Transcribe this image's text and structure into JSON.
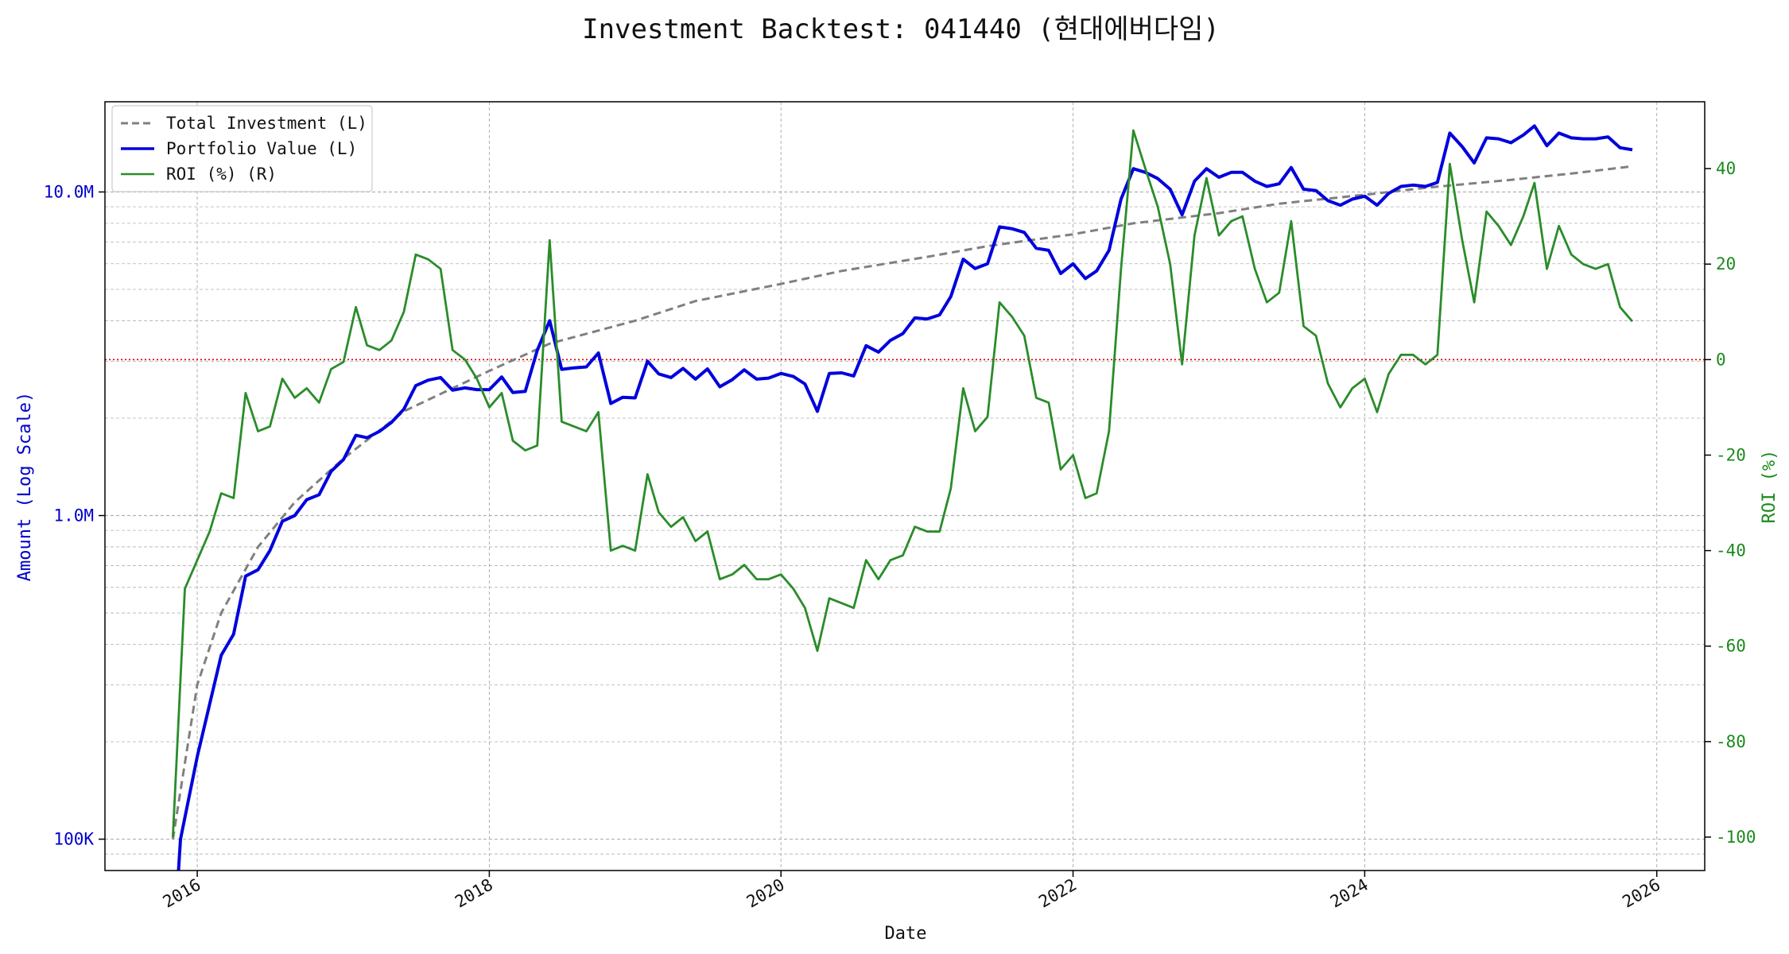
{
  "chart_data": {
    "type": "line",
    "title": "Investment Backtest: 041440 (현대에버다임)",
    "xlabel": "Date",
    "ylabel_left": "Amount (Log Scale)",
    "ylabel_right": "ROI (%)",
    "y_left_scale": "log",
    "y_left_lim": [
      80000,
      19000000
    ],
    "y_right_lim": [
      -107,
      54
    ],
    "x_lim": [
      "2015-05-15",
      "2026-05-01"
    ],
    "x_ticks": [
      "2016",
      "2018",
      "2020",
      "2022",
      "2024",
      "2026"
    ],
    "y_left_ticks": [
      {
        "value": 100000,
        "label": "100K"
      },
      {
        "value": 1000000,
        "label": "1.0M"
      },
      {
        "value": 10000000,
        "label": "10.0M"
      }
    ],
    "y_right_ticks": [
      -100,
      -80,
      -60,
      -40,
      -20,
      0,
      20,
      40
    ],
    "reference_line": {
      "axis": "right",
      "value": 0,
      "color": "#dd0000",
      "style": "dotted"
    },
    "grid": true,
    "legend": {
      "position": "top-left",
      "entries": [
        {
          "label": "Total Investment (L)",
          "color": "#808080",
          "style": "dashed"
        },
        {
          "label": "Portfolio Value (L)",
          "color": "#0000dd",
          "style": "solid"
        },
        {
          "label": "ROI (%) (R)",
          "color": "#2a8c2a",
          "style": "solid"
        }
      ]
    },
    "series": [
      {
        "name": "Total Investment (L)",
        "axis": "left",
        "color": "#808080",
        "x": [
          "2015-11-01",
          "2016-01-01",
          "2016-03-01",
          "2016-06-01",
          "2016-09-01",
          "2017-01-01",
          "2017-06-01",
          "2018-01-01",
          "2018-06-01",
          "2019-01-01",
          "2019-06-01",
          "2020-01-01",
          "2020-06-01",
          "2021-01-01",
          "2021-06-01",
          "2022-01-01",
          "2022-06-01",
          "2023-01-01",
          "2023-06-01",
          "2024-01-01",
          "2024-06-01",
          "2025-01-01",
          "2025-06-01",
          "2025-11-01"
        ],
        "values": [
          100000,
          300000,
          500000,
          800000,
          1100000,
          1500000,
          2100000,
          2800000,
          3400000,
          4000000,
          4600000,
          5200000,
          5700000,
          6300000,
          6800000,
          7400000,
          8000000,
          8600000,
          9200000,
          9800000,
          10300000,
          10900000,
          11400000,
          12000000
        ]
      },
      {
        "name": "Portfolio Value (L)",
        "axis": "left",
        "color": "#0000dd",
        "x": [
          "2015-11-15",
          "2015-11-20",
          "2016-01-01",
          "2016-03-01",
          "2016-04-01",
          "2016-05-01",
          "2016-06-01",
          "2016-07-01",
          "2016-08-01",
          "2016-09-01",
          "2016-10-01",
          "2016-11-01",
          "2016-12-01",
          "2017-01-01",
          "2017-02-01",
          "2017-03-01",
          "2017-04-01",
          "2017-05-01",
          "2017-06-01",
          "2017-07-01",
          "2017-08-01",
          "2017-09-01",
          "2017-10-01",
          "2017-11-01",
          "2017-12-01",
          "2018-01-01",
          "2018-02-01",
          "2018-03-01",
          "2018-04-01",
          "2018-05-01",
          "2018-06-01",
          "2018-07-01",
          "2018-08-01",
          "2018-09-01",
          "2018-10-01",
          "2018-11-01",
          "2018-12-01",
          "2019-01-01",
          "2019-02-01",
          "2019-03-01",
          "2019-04-01",
          "2019-05-01",
          "2019-06-01",
          "2019-07-01",
          "2019-08-01",
          "2019-09-01",
          "2019-10-01",
          "2019-11-01",
          "2019-12-01",
          "2020-01-01",
          "2020-02-01",
          "2020-03-01",
          "2020-04-01",
          "2020-05-01",
          "2020-06-01",
          "2020-07-01",
          "2020-08-01",
          "2020-09-01",
          "2020-10-01",
          "2020-11-01",
          "2020-12-01",
          "2021-01-01",
          "2021-02-01",
          "2021-03-01",
          "2021-04-01",
          "2021-05-01",
          "2021-06-01",
          "2021-07-01",
          "2021-08-01",
          "2021-09-01",
          "2021-10-01",
          "2021-11-01",
          "2021-12-01",
          "2022-01-01",
          "2022-02-01",
          "2022-03-01",
          "2022-04-01",
          "2022-05-01",
          "2022-06-01",
          "2022-07-01",
          "2022-08-01",
          "2022-09-01",
          "2022-10-01",
          "2022-11-01",
          "2022-12-01",
          "2023-01-01",
          "2023-02-01",
          "2023-03-01",
          "2023-04-01",
          "2023-05-01",
          "2023-06-01",
          "2023-07-01",
          "2023-08-01",
          "2023-09-01",
          "2023-10-01",
          "2023-11-01",
          "2023-12-01",
          "2024-01-01",
          "2024-02-01",
          "2024-03-01",
          "2024-04-01",
          "2024-05-01",
          "2024-06-01",
          "2024-07-01",
          "2024-08-01",
          "2024-09-01",
          "2024-10-01",
          "2024-11-01",
          "2024-12-01",
          "2025-01-01",
          "2025-02-01",
          "2025-03-01",
          "2025-04-01",
          "2025-05-01",
          "2025-06-01",
          "2025-07-01",
          "2025-08-01",
          "2025-09-01",
          "2025-10-01",
          "2025-11-01"
        ],
        "values": [
          80000,
          100000,
          180000,
          370000,
          430000,
          650000,
          680000,
          780000,
          960000,
          1000000,
          1120000,
          1160000,
          1370000,
          1490000,
          1770000,
          1740000,
          1820000,
          1940000,
          2130000,
          2520000,
          2620000,
          2670000,
          2440000,
          2480000,
          2450000,
          2450000,
          2680000,
          2400000,
          2420000,
          3240000,
          4000000,
          2830000,
          2860000,
          2880000,
          3180000,
          2220000,
          2320000,
          2310000,
          3000000,
          2740000,
          2670000,
          2850000,
          2640000,
          2840000,
          2500000,
          2630000,
          2820000,
          2640000,
          2660000,
          2750000,
          2690000,
          2550000,
          2100000,
          2750000,
          2760000,
          2700000,
          3350000,
          3200000,
          3480000,
          3650000,
          4080000,
          4050000,
          4170000,
          4750000,
          6200000,
          5800000,
          6000000,
          7800000,
          7700000,
          7500000,
          6700000,
          6600000,
          5600000,
          6000000,
          5400000,
          5700000,
          6600000,
          9500000,
          11800000,
          11500000,
          11000000,
          10200000,
          8500000,
          10800000,
          11800000,
          11100000,
          11500000,
          11500000,
          10800000,
          10400000,
          10600000,
          11900000,
          10200000,
          10100000,
          9400000,
          9100000,
          9500000,
          9700000,
          9100000,
          9900000,
          10400000,
          10500000,
          10400000,
          10700000,
          15200000,
          13800000,
          12300000,
          14700000,
          14600000,
          14200000,
          15000000,
          16000000,
          13900000,
          15200000,
          14700000,
          14600000,
          14600000,
          14800000,
          13700000,
          13500000
        ]
      },
      {
        "name": "ROI (%) (R)",
        "axis": "right",
        "color": "#2a8c2a",
        "x": [
          "2015-11-01",
          "2015-12-01",
          "2016-01-01",
          "2016-02-01",
          "2016-03-01",
          "2016-04-01",
          "2016-05-01",
          "2016-06-01",
          "2016-07-01",
          "2016-08-01",
          "2016-09-01",
          "2016-10-01",
          "2016-11-01",
          "2016-12-01",
          "2017-01-01",
          "2017-02-01",
          "2017-03-01",
          "2017-04-01",
          "2017-05-01",
          "2017-06-01",
          "2017-07-01",
          "2017-08-01",
          "2017-09-01",
          "2017-10-01",
          "2017-11-01",
          "2017-12-01",
          "2018-01-01",
          "2018-02-01",
          "2018-03-01",
          "2018-04-01",
          "2018-05-01",
          "2018-06-01",
          "2018-07-01",
          "2018-08-01",
          "2018-09-01",
          "2018-10-01",
          "2018-11-01",
          "2018-12-01",
          "2019-01-01",
          "2019-02-01",
          "2019-03-01",
          "2019-04-01",
          "2019-05-01",
          "2019-06-01",
          "2019-07-01",
          "2019-08-01",
          "2019-09-01",
          "2019-10-01",
          "2019-11-01",
          "2019-12-01",
          "2020-01-01",
          "2020-02-01",
          "2020-03-01",
          "2020-04-01",
          "2020-05-01",
          "2020-06-01",
          "2020-07-01",
          "2020-08-01",
          "2020-09-01",
          "2020-10-01",
          "2020-11-01",
          "2020-12-01",
          "2021-01-01",
          "2021-02-01",
          "2021-03-01",
          "2021-04-01",
          "2021-05-01",
          "2021-06-01",
          "2021-07-01",
          "2021-08-01",
          "2021-09-01",
          "2021-10-01",
          "2021-11-01",
          "2021-12-01",
          "2022-01-01",
          "2022-02-01",
          "2022-03-01",
          "2022-04-01",
          "2022-05-01",
          "2022-06-01",
          "2022-07-01",
          "2022-08-01",
          "2022-09-01",
          "2022-10-01",
          "2022-11-01",
          "2022-12-01",
          "2023-01-01",
          "2023-02-01",
          "2023-03-01",
          "2023-04-01",
          "2023-05-01",
          "2023-06-01",
          "2023-07-01",
          "2023-08-01",
          "2023-09-01",
          "2023-10-01",
          "2023-11-01",
          "2023-12-01",
          "2024-01-01",
          "2024-02-01",
          "2024-03-01",
          "2024-04-01",
          "2024-05-01",
          "2024-06-01",
          "2024-07-01",
          "2024-08-01",
          "2024-09-01",
          "2024-10-01",
          "2024-11-01",
          "2024-12-01",
          "2025-01-01",
          "2025-02-01",
          "2025-03-01",
          "2025-04-01",
          "2025-05-01",
          "2025-06-01",
          "2025-07-01",
          "2025-08-01",
          "2025-09-01",
          "2025-10-01",
          "2025-11-01"
        ],
        "values": [
          -100,
          -48,
          -42,
          -36,
          -28,
          -29,
          -7,
          -15,
          -14,
          -4,
          -8,
          -6,
          -9,
          -2,
          -0.5,
          11,
          3,
          2,
          4,
          10,
          22,
          21,
          19,
          2,
          0,
          -4,
          -10,
          -7,
          -17,
          -19,
          -18,
          25,
          -13,
          -14,
          -15,
          -11,
          -40,
          -39,
          -40,
          -24,
          -32,
          -35,
          -33,
          -38,
          -36,
          -46,
          -45,
          -43,
          -46,
          -46,
          -45,
          -48,
          -52,
          -61,
          -50,
          -51,
          -52,
          -42,
          -46,
          -42,
          -41,
          -35,
          -36,
          -36,
          -27,
          -6,
          -15,
          -12,
          12,
          9,
          5,
          -8,
          -9,
          -23,
          -20,
          -29,
          -28,
          -15,
          19,
          48,
          40,
          32,
          20,
          -1,
          26,
          38,
          26,
          29,
          30,
          19,
          12,
          14,
          29,
          7,
          5,
          -5,
          -10,
          -6,
          -4,
          -11,
          -3,
          1,
          1,
          -1,
          1,
          41,
          25,
          12,
          31,
          28,
          24,
          30,
          37,
          19,
          28,
          22,
          20,
          19,
          20,
          11,
          8
        ]
      }
    ]
  }
}
